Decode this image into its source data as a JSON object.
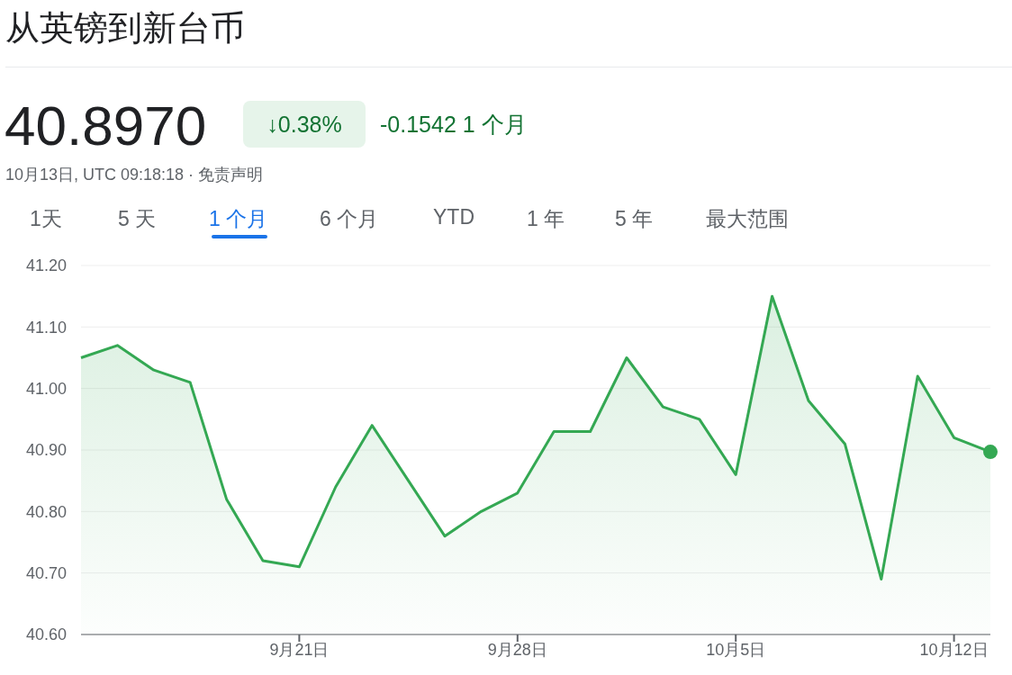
{
  "chart_data": {
    "type": "area",
    "title": "从英镑到新台币",
    "annotations": [
      "40.8970",
      "↓0.38%",
      "-0.1542 1 个月",
      "10月13日, UTC 09:18:18 · 免责声明",
      "1天",
      "5 天",
      "1 个月",
      "6 个月",
      "YTD",
      "1 年",
      "5 年",
      "最大范围"
    ],
    "categories": [
      null,
      null,
      null,
      null,
      null,
      null,
      "9月21日",
      null,
      null,
      null,
      null,
      null,
      "9月28日",
      null,
      null,
      null,
      null,
      null,
      "10月5日",
      null,
      null,
      null,
      null,
      null,
      "10月12日",
      null
    ],
    "series": [
      {
        "color": "#34a853",
        "values": [
          41.05,
          41.07,
          41.03,
          41.01,
          40.82,
          40.72,
          40.71,
          40.84,
          40.94,
          40.85,
          40.76,
          40.8,
          40.83,
          40.93,
          40.93,
          41.05,
          40.97,
          40.95,
          40.86,
          41.15,
          40.98,
          40.91,
          40.69,
          41.02,
          40.92,
          40.897
        ]
      }
    ],
    "ylim": [
      40.6,
      41.2
    ],
    "yticks": [
      {
        "value": 40.6,
        "label": "40.60"
      },
      {
        "value": 40.7,
        "label": "40.70"
      },
      {
        "value": 40.8,
        "label": "40.80"
      },
      {
        "value": 40.9,
        "label": "40.90"
      },
      {
        "value": 41.0,
        "label": "41.00"
      },
      {
        "value": 41.1,
        "label": "41.10"
      },
      {
        "value": 41.2,
        "label": "41.20"
      }
    ],
    "grid": "y"
  }
}
